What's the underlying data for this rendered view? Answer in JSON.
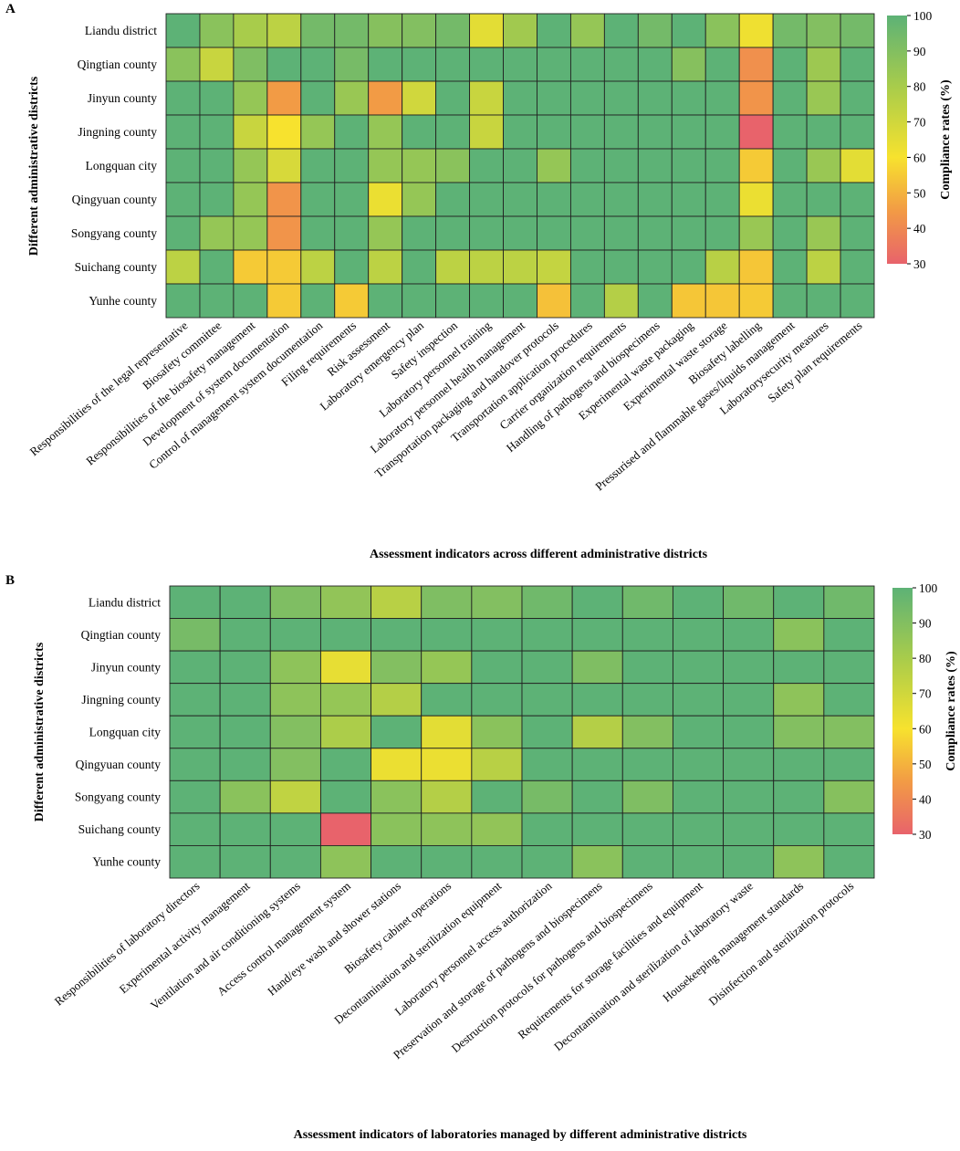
{
  "chart_data": [
    {
      "type": "heatmap",
      "panel_label": "A",
      "title": "",
      "xlabel": "Assessment indicators across different administrative districts",
      "ylabel": "Different administrative districts",
      "colorbar_label": "Compliance rates (%)",
      "colorbar_ticks": [
        100,
        90,
        80,
        70,
        60,
        50,
        40,
        30
      ],
      "zlim": [
        30,
        100
      ],
      "colorscale": [
        {
          "value": 30,
          "color": "#e8636b"
        },
        {
          "value": 45,
          "color": "#f29b45"
        },
        {
          "value": 60,
          "color": "#f7e22e"
        },
        {
          "value": 80,
          "color": "#a8cc4b"
        },
        {
          "value": 100,
          "color": "#5db276"
        }
      ],
      "rows": [
        "Liandu district",
        "Qingtian county",
        "Jinyun county",
        "Jingning county",
        "Longquan city",
        "Qingyuan county",
        "Songyang county",
        "Suichang county",
        "Yunhe county"
      ],
      "columns": [
        "Responsibilities of the legal representative",
        "Biosafety committee",
        "Responsibilities of the biosafety management",
        "Development of system documentation",
        "Control of management system documentation",
        "Filing requirements",
        "Risk assessment",
        "Laboratory emergency plan",
        "Safety inspection",
        "Laboratory personnel training",
        "Laboratory personnel health management",
        "Transportation packaging and handover protocols",
        "Transportation application procedures",
        "Carrier organization requirements",
        "Handling of pathogens and biospecimens",
        "Experimental waste packaging",
        "Experimental waste storage",
        "Biosafety labelling",
        "Pressurised and flammable gases/liquids management",
        "Laboratorysecurity measures",
        "Safety plan requirements"
      ],
      "values": [
        [
          100,
          88,
          80,
          75,
          94,
          94,
          89,
          90,
          94,
          65,
          82,
          100,
          85,
          100,
          94,
          100,
          88,
          62,
          94,
          90,
          94
        ],
        [
          88,
          72,
          91,
          100,
          100,
          93,
          100,
          100,
          100,
          100,
          100,
          100,
          100,
          100,
          100,
          89,
          100,
          42,
          100,
          83,
          100
        ],
        [
          100,
          100,
          85,
          45,
          100,
          84,
          45,
          70,
          100,
          72,
          100,
          100,
          100,
          100,
          100,
          100,
          100,
          43,
          100,
          84,
          100
        ],
        [
          100,
          100,
          72,
          60,
          85,
          100,
          85,
          100,
          100,
          72,
          100,
          100,
          100,
          100,
          100,
          100,
          100,
          30,
          100,
          100,
          100
        ],
        [
          100,
          100,
          85,
          68,
          100,
          100,
          85,
          85,
          88,
          100,
          100,
          85,
          100,
          100,
          100,
          100,
          100,
          55,
          100,
          84,
          65
        ],
        [
          100,
          100,
          85,
          43,
          100,
          100,
          63,
          85,
          100,
          100,
          100,
          100,
          100,
          100,
          100,
          100,
          100,
          63,
          100,
          100,
          100
        ],
        [
          100,
          85,
          85,
          43,
          100,
          100,
          85,
          100,
          100,
          100,
          100,
          100,
          100,
          100,
          100,
          100,
          100,
          84,
          100,
          84,
          100
        ],
        [
          75,
          100,
          55,
          55,
          75,
          100,
          75,
          100,
          75,
          75,
          75,
          73,
          100,
          100,
          100,
          100,
          76,
          54,
          100,
          75,
          100
        ],
        [
          100,
          100,
          100,
          55,
          100,
          55,
          100,
          100,
          100,
          100,
          100,
          53,
          100,
          77,
          100,
          54,
          54,
          55,
          100,
          100,
          100
        ]
      ]
    },
    {
      "type": "heatmap",
      "panel_label": "B",
      "title": "",
      "xlabel": "Assessment indicators of laboratories managed by different administrative districts",
      "ylabel": "Different administrative districts",
      "colorbar_label": "Compliance rates (%)",
      "colorbar_ticks": [
        100,
        90,
        80,
        70,
        60,
        50,
        40,
        30
      ],
      "zlim": [
        30,
        100
      ],
      "colorscale": [
        {
          "value": 30,
          "color": "#e8636b"
        },
        {
          "value": 45,
          "color": "#f29b45"
        },
        {
          "value": 60,
          "color": "#f7e22e"
        },
        {
          "value": 80,
          "color": "#a8cc4b"
        },
        {
          "value": 100,
          "color": "#5db276"
        }
      ],
      "rows": [
        "Liandu district",
        "Qingtian county",
        "Jinyun county",
        "Jingning county",
        "Longquan city",
        "Qingyuan county",
        "Songyang county",
        "Suichang county",
        "Yunhe county"
      ],
      "columns": [
        "Responsibilities of laboratory directors",
        "Experimental activity management",
        "Ventilation and air conditioning systems",
        "Access control management system",
        "Hand/eye wash and shower stations",
        "Biosafety cabinet operations",
        "Decontamination and sterilization equipment",
        "Laboratory personnel access authorization",
        "Preservation and storage of pathogens and biospecimens",
        "Destruction protocols for pathogens and biospecimens",
        "Requirements for storage facilities and equipment",
        "Decontamination and sterilization of laboratory waste",
        "Housekeeping management standards",
        "Disinfection and sterilization protocols"
      ],
      "values": [
        [
          100,
          100,
          91,
          86,
          76,
          91,
          90,
          95,
          100,
          95,
          100,
          95,
          100,
          95
        ],
        [
          93,
          100,
          100,
          100,
          100,
          100,
          100,
          100,
          100,
          100,
          100,
          100,
          88,
          100
        ],
        [
          100,
          100,
          87,
          64,
          90,
          85,
          100,
          100,
          91,
          100,
          100,
          100,
          100,
          100
        ],
        [
          100,
          100,
          87,
          85,
          77,
          100,
          100,
          100,
          100,
          100,
          100,
          100,
          87,
          100
        ],
        [
          100,
          100,
          90,
          79,
          100,
          65,
          88,
          100,
          77,
          90,
          100,
          100,
          90,
          90
        ],
        [
          100,
          100,
          90,
          100,
          63,
          63,
          76,
          100,
          100,
          100,
          100,
          100,
          100,
          100
        ],
        [
          100,
          88,
          74,
          100,
          88,
          77,
          100,
          93,
          100,
          91,
          100,
          100,
          100,
          89
        ],
        [
          100,
          100,
          100,
          30,
          88,
          87,
          86,
          100,
          100,
          100,
          100,
          100,
          100,
          100
        ],
        [
          100,
          100,
          100,
          87,
          100,
          100,
          100,
          100,
          88,
          100,
          100,
          100,
          87,
          100
        ]
      ]
    }
  ]
}
